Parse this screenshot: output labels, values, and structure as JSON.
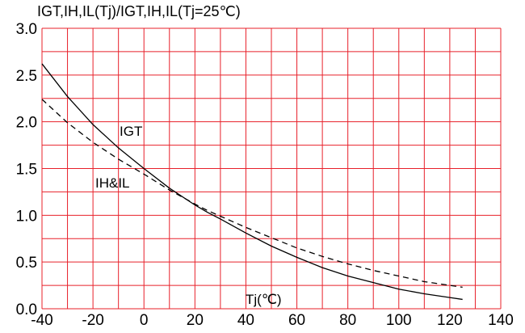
{
  "chart_data": {
    "type": "line",
    "title": "IGT,IH,IL(Tj)/IGT,IH,IL(Tj=25℃)",
    "xlabel": "Tj(℃)",
    "ylabel": "",
    "xlim": [
      -40,
      140
    ],
    "ylim": [
      0,
      3.0
    ],
    "x_ticks": [
      "-40",
      "-20",
      "0",
      "20",
      "40",
      "60",
      "80",
      "100",
      "120",
      "140"
    ],
    "y_ticks": [
      "0.0",
      "0.5",
      "1.0",
      "1.5",
      "2.0",
      "2.5",
      "3.0"
    ],
    "x_gridlines": [
      -40,
      -30,
      -20,
      -10,
      0,
      10,
      20,
      30,
      40,
      50,
      60,
      70,
      80,
      90,
      100,
      110,
      120,
      130,
      140
    ],
    "y_gridlines": [
      0,
      0.25,
      0.5,
      0.75,
      1.0,
      1.25,
      1.5,
      1.75,
      2.0,
      2.25,
      2.5,
      2.75,
      3.0
    ],
    "grid": true,
    "grid_color": "#e8202a",
    "series": [
      {
        "name": "IGT",
        "style": "solid",
        "x": [
          -40,
          -30,
          -20,
          -10,
          0,
          10,
          20,
          25,
          30,
          40,
          50,
          60,
          70,
          80,
          90,
          100,
          110,
          120,
          125
        ],
        "y": [
          2.62,
          2.27,
          1.97,
          1.72,
          1.5,
          1.29,
          1.11,
          1.03,
          0.96,
          0.81,
          0.67,
          0.55,
          0.44,
          0.35,
          0.28,
          0.21,
          0.16,
          0.12,
          0.1
        ]
      },
      {
        "name": "IH&IL",
        "style": "dashed",
        "x": [
          -40,
          -30,
          -20,
          -10,
          0,
          10,
          20,
          25,
          30,
          40,
          50,
          60,
          70,
          80,
          90,
          100,
          110,
          120,
          125
        ],
        "y": [
          2.24,
          1.99,
          1.78,
          1.6,
          1.44,
          1.27,
          1.12,
          1.05,
          0.99,
          0.87,
          0.76,
          0.65,
          0.56,
          0.48,
          0.41,
          0.35,
          0.29,
          0.25,
          0.23
        ]
      }
    ]
  }
}
